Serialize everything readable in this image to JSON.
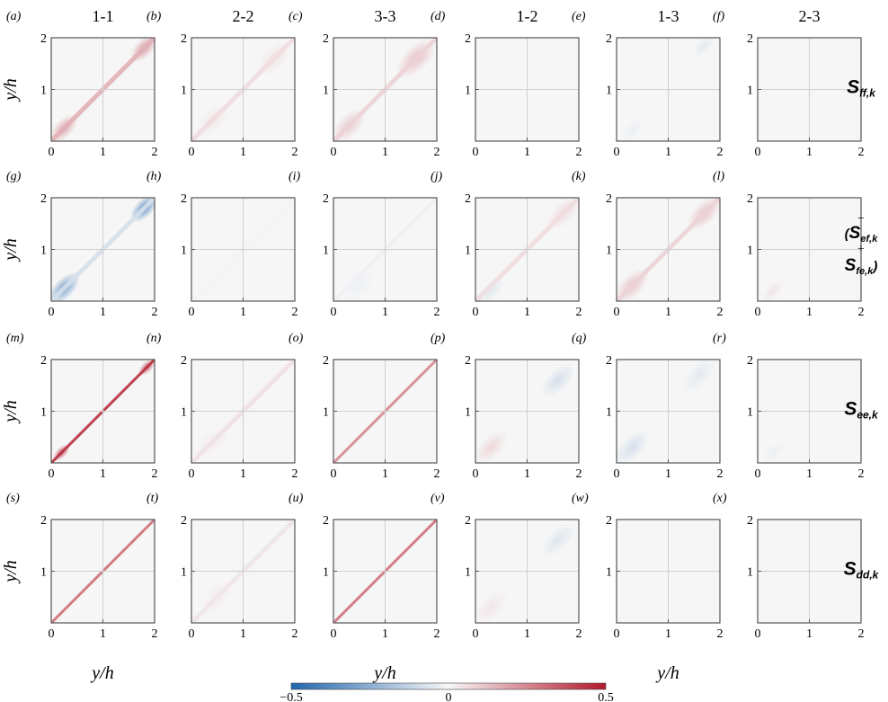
{
  "chart_data": {
    "type": "heatmap",
    "description": "not used",
    "columns": [
      "1-1",
      "2-2",
      "3-3",
      "1-2",
      "1-3",
      "2-3"
    ],
    "rows": [
      {
        "label_main": "S",
        "label_sub": "ff,k"
      },
      {
        "label_prefix": "−(",
        "label_main": "S",
        "label_sub": "ef,k",
        "label_mid": "+",
        "label_main2": "S",
        "label_sub2": "fe,k",
        "label_suffix": ")"
      },
      {
        "label_main": "S",
        "label_sub": "ee,k"
      },
      {
        "label_main": "S",
        "label_sub": "dd,k"
      }
    ],
    "panel_labels": [
      "(a)",
      "(b)",
      "(c)",
      "(d)",
      "(e)",
      "(f)",
      "(g)",
      "(h)",
      "(i)",
      "(j)",
      "(k)",
      "(l)",
      "(m)",
      "(n)",
      "(o)",
      "(p)",
      "(q)",
      "(r)",
      "(s)",
      "(t)",
      "(u)",
      "(v)",
      "(w)",
      "(x)"
    ],
    "xlabel": "y/h",
    "ylabel": "y/h",
    "xlim": [
      0,
      2
    ],
    "ylim": [
      0,
      2
    ],
    "x_ticks": [
      "0",
      "1",
      "2"
    ],
    "y_ticks": [
      "1",
      "2"
    ],
    "grid": true,
    "colorbar": {
      "min": -0.5,
      "max": 0.5,
      "ticks": [
        "−0.5",
        "0",
        "0.5"
      ],
      "colors": [
        "#2166ac",
        "#f7f7f7",
        "#b2182b"
      ]
    },
    "panels": [
      [
        {
          "diag_peak": 0.16,
          "blobs": [
            {
              "x": 0.25,
              "y": 0.25,
              "v": 0.18,
              "r": 0.25
            },
            {
              "x": 1.8,
              "y": 1.8,
              "v": 0.2,
              "r": 0.25
            }
          ]
        },
        {
          "diag_peak": 0.06,
          "blobs": [
            {
              "x": 0.4,
              "y": 0.4,
              "v": 0.04,
              "r": 0.3
            },
            {
              "x": 1.6,
              "y": 1.6,
              "v": 0.05,
              "r": 0.3
            }
          ]
        },
        {
          "diag_peak": 0.08,
          "blobs": [
            {
              "x": 0.3,
              "y": 0.3,
              "v": 0.1,
              "r": 0.3
            },
            {
              "x": 1.6,
              "y": 1.6,
              "v": 0.12,
              "r": 0.35
            }
          ]
        },
        {
          "diag_peak": 0.0,
          "blobs": []
        },
        {
          "diag_peak": 0.0,
          "blobs": [
            {
              "x": 1.7,
              "y": 1.85,
              "v": -0.05,
              "r": 0.2
            },
            {
              "x": 0.3,
              "y": 0.2,
              "v": -0.03,
              "r": 0.2
            }
          ]
        },
        {
          "diag_peak": 0.0,
          "blobs": []
        }
      ],
      [
        {
          "diag_peak": -0.08,
          "blobs": [
            {
              "x": 0.25,
              "y": 0.25,
              "v": -0.3,
              "r": 0.28
            },
            {
              "x": 1.8,
              "y": 1.8,
              "v": -0.35,
              "r": 0.25
            }
          ]
        },
        {
          "diag_peak": -0.01,
          "blobs": []
        },
        {
          "diag_peak": -0.02,
          "blobs": [
            {
              "x": 0.5,
              "y": 0.3,
              "v": -0.02,
              "r": 0.3
            }
          ]
        },
        {
          "diag_peak": 0.06,
          "blobs": [
            {
              "x": 0.3,
              "y": 0.2,
              "v": -0.05,
              "r": 0.25
            },
            {
              "x": 1.7,
              "y": 1.7,
              "v": 0.06,
              "r": 0.3
            }
          ]
        },
        {
          "diag_peak": 0.08,
          "blobs": [
            {
              "x": 0.3,
              "y": 0.3,
              "v": 0.12,
              "r": 0.3
            },
            {
              "x": 1.7,
              "y": 1.7,
              "v": 0.12,
              "r": 0.3
            }
          ]
        },
        {
          "diag_peak": 0.0,
          "blobs": [
            {
              "x": 0.3,
              "y": 0.2,
              "v": 0.04,
              "r": 0.2
            }
          ]
        }
      ],
      [
        {
          "diag_peak": 0.45,
          "blobs": [
            {
              "x": 0.2,
              "y": 0.2,
              "v": 0.35,
              "r": 0.15
            },
            {
              "x": 1.85,
              "y": 1.85,
              "v": 0.35,
              "r": 0.15
            }
          ]
        },
        {
          "diag_peak": 0.05,
          "blobs": [
            {
              "x": 0.4,
              "y": 0.4,
              "v": 0.03,
              "r": 0.3
            }
          ]
        },
        {
          "diag_peak": 0.25,
          "blobs": []
        },
        {
          "diag_peak": 0.0,
          "blobs": [
            {
              "x": 0.3,
              "y": 0.3,
              "v": 0.07,
              "r": 0.3
            },
            {
              "x": 1.6,
              "y": 1.6,
              "v": -0.08,
              "r": 0.3
            }
          ]
        },
        {
          "diag_peak": 0.0,
          "blobs": [
            {
              "x": 0.3,
              "y": 0.3,
              "v": -0.08,
              "r": 0.3
            },
            {
              "x": 1.6,
              "y": 1.7,
              "v": -0.05,
              "r": 0.3
            }
          ]
        },
        {
          "diag_peak": 0.0,
          "blobs": [
            {
              "x": 0.3,
              "y": 0.2,
              "v": -0.03,
              "r": 0.2
            }
          ]
        }
      ],
      [
        {
          "diag_peak": 0.3,
          "blobs": []
        },
        {
          "diag_peak": 0.04,
          "blobs": [
            {
              "x": 0.5,
              "y": 0.5,
              "v": 0.03,
              "r": 0.3
            }
          ]
        },
        {
          "diag_peak": 0.3,
          "blobs": []
        },
        {
          "diag_peak": 0.0,
          "blobs": [
            {
              "x": 0.3,
              "y": 0.3,
              "v": 0.04,
              "r": 0.3
            },
            {
              "x": 1.6,
              "y": 1.6,
              "v": -0.06,
              "r": 0.3
            }
          ]
        },
        {
          "diag_peak": 0.0,
          "blobs": []
        },
        {
          "diag_peak": 0.0,
          "blobs": []
        }
      ]
    ]
  }
}
